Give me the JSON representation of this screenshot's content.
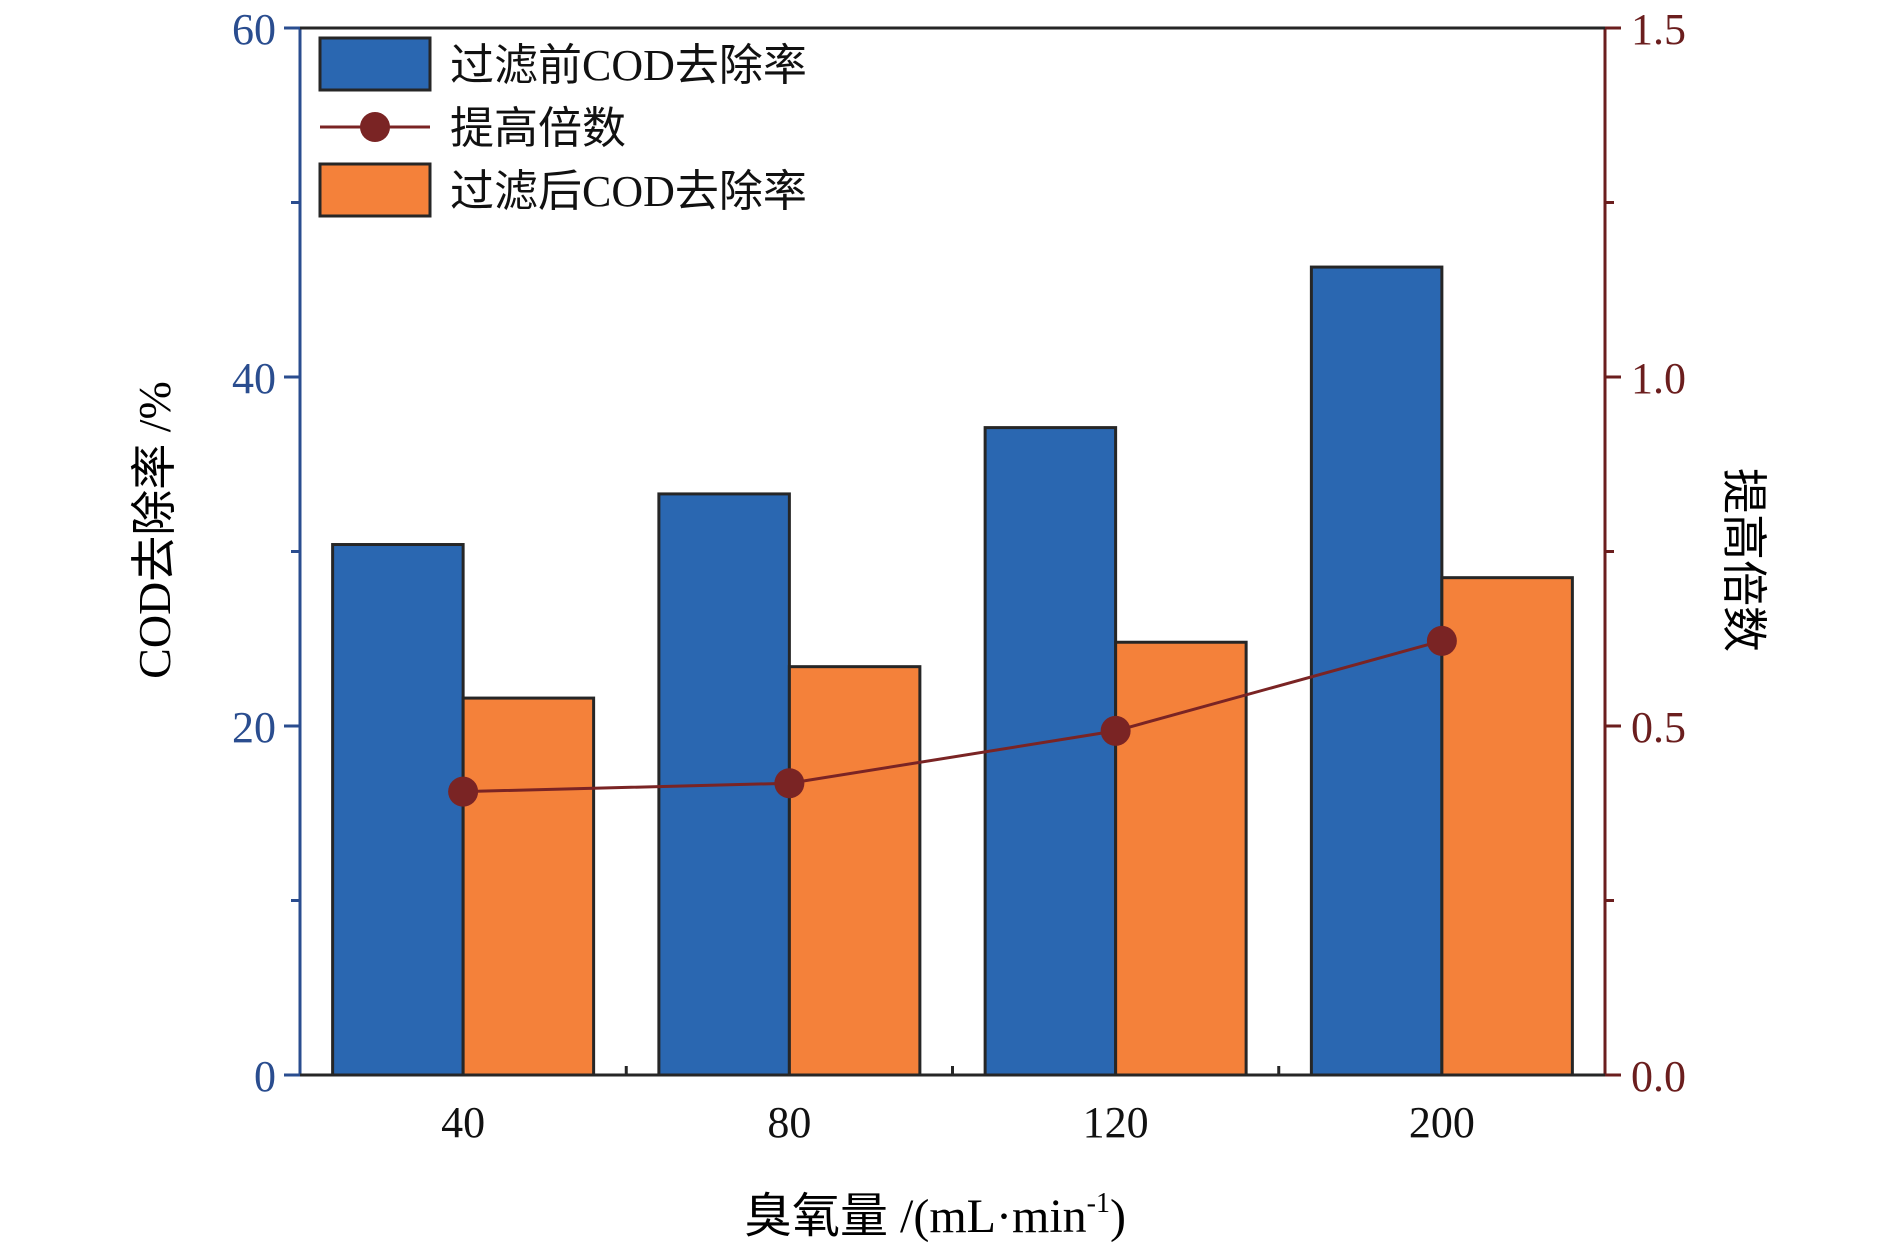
{
  "colors": {
    "left_axis": "#2a4d8f",
    "right_axis": "#6b1e1e",
    "bar_before": "#2a67b1",
    "bar_after": "#f4813a",
    "line": "#7a2424",
    "bar_stroke": "#262626"
  },
  "chart_data": {
    "type": "bar",
    "xlabel": "臭氧量 /(mL·min",
    "xlabel_sup": "-1",
    "xlabel_close": ")",
    "ylabel": "COD去除率 /%",
    "y2label": "提高倍数",
    "categories": [
      "40",
      "80",
      "120",
      "200"
    ],
    "ylim": [
      0,
      60
    ],
    "y2lim": [
      0,
      1.5
    ],
    "yticks": [
      "0",
      "20",
      "40",
      "60"
    ],
    "y2ticks": [
      "0.0",
      "0.5",
      "1.0",
      "1.5"
    ],
    "series": [
      {
        "name": "过滤前COD去除率",
        "type": "bar",
        "axis": "left",
        "values": [
          30.4,
          33.3,
          37.1,
          46.3
        ]
      },
      {
        "name": "提高倍数",
        "type": "line",
        "axis": "right",
        "values": [
          0.406,
          0.418,
          0.493,
          0.622
        ]
      },
      {
        "name": "过滤后COD去除率",
        "type": "bar",
        "axis": "left",
        "values": [
          21.6,
          23.4,
          24.8,
          28.5
        ]
      }
    ],
    "legend_position": "top-left",
    "grid": false
  }
}
